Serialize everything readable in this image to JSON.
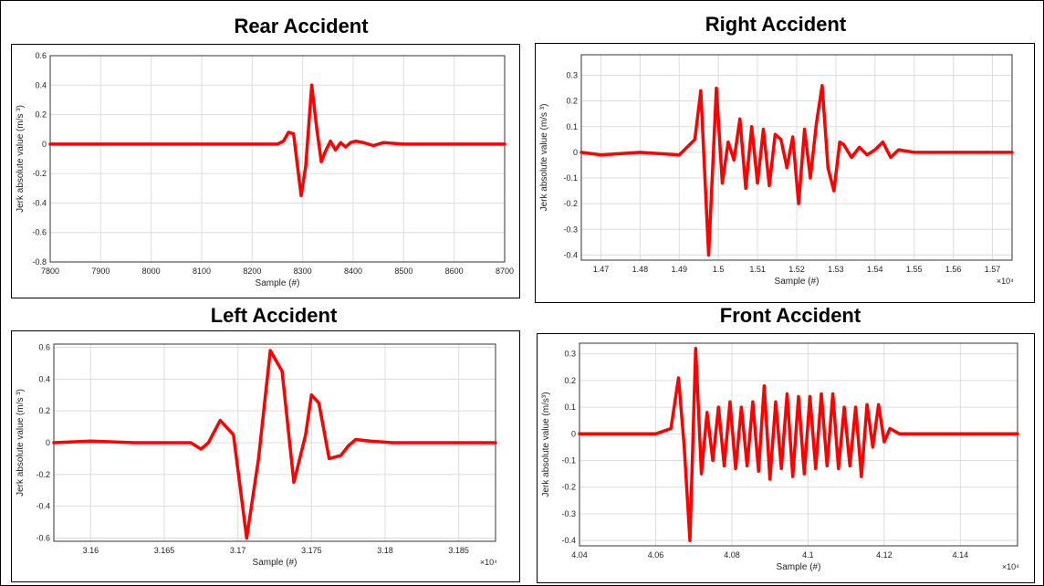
{
  "chart_data": [
    {
      "type": "line",
      "title": "Rear Accident",
      "xlabel": "Sample (#)",
      "ylabel": "Jerk absolute value (m/s ³)",
      "exponent": "",
      "xlim": [
        7800,
        8700
      ],
      "ylim": [
        -0.8,
        0.6
      ],
      "xticks": [
        7800,
        7900,
        8000,
        8100,
        8200,
        8300,
        8400,
        8500,
        8600,
        8700
      ],
      "xtick_labels": [
        "7800",
        "7900",
        "8000",
        "8100",
        "8200",
        "8300",
        "8400",
        "8500",
        "8600",
        "8700"
      ],
      "yticks": [
        -0.8,
        -0.6,
        -0.4,
        -0.2,
        0,
        0.2,
        0.4,
        0.6
      ],
      "ytick_labels": [
        "-0.8",
        "-0.6",
        "-0.4",
        "-0.2",
        "0",
        "0.2",
        "0.4",
        "0.6"
      ],
      "grid": true,
      "color": "#ff0000",
      "series": [
        {
          "x": [
            7800,
            8250,
            8262,
            8272,
            8282,
            8288,
            8297,
            8306,
            8318,
            8328,
            8337,
            8345,
            8355,
            8365,
            8375,
            8385,
            8395,
            8405,
            8420,
            8440,
            8460,
            8500,
            8550,
            8600,
            8700
          ],
          "y": [
            0,
            0,
            0.02,
            0.08,
            0.07,
            -0.1,
            -0.35,
            -0.15,
            0.4,
            0.1,
            -0.12,
            -0.05,
            0.02,
            -0.04,
            0.01,
            -0.02,
            0.01,
            0.02,
            0.01,
            -0.01,
            0.01,
            0,
            0,
            0,
            0
          ]
        }
      ]
    },
    {
      "type": "line",
      "title": "Right Accident",
      "xlabel": "Sample (#)",
      "ylabel": "Jerk absolute value (m/s ³)",
      "exponent": "×10⁴",
      "xlim": [
        1.465,
        1.575
      ],
      "ylim": [
        -0.42,
        0.38
      ],
      "xticks": [
        1.47,
        1.48,
        1.49,
        1.5,
        1.51,
        1.52,
        1.53,
        1.54,
        1.55,
        1.56,
        1.57
      ],
      "xtick_labels": [
        "1.47",
        "1.48",
        "1.49",
        "1.5",
        "1.51",
        "1.52",
        "1.53",
        "1.54",
        "1.55",
        "1.56",
        "1.57"
      ],
      "yticks": [
        -0.4,
        -0.3,
        -0.2,
        -0.1,
        0,
        0.1,
        0.2,
        0.3
      ],
      "ytick_labels": [
        "-0.4",
        "-0.3",
        "-0.2",
        "-0.1",
        "0",
        "0.1",
        "0.2",
        "0.3"
      ],
      "grid": true,
      "color": "#ff0000",
      "series": [
        {
          "x": [
            1.465,
            1.47,
            1.48,
            1.49,
            1.492,
            1.494,
            1.4955,
            1.4975,
            1.4995,
            1.501,
            1.5025,
            1.504,
            1.5055,
            1.507,
            1.5085,
            1.51,
            1.5115,
            1.513,
            1.5145,
            1.516,
            1.5175,
            1.519,
            1.5205,
            1.522,
            1.5235,
            1.525,
            1.5265,
            1.528,
            1.5295,
            1.531,
            1.532,
            1.534,
            1.536,
            1.538,
            1.54,
            1.542,
            1.544,
            1.546,
            1.55,
            1.56,
            1.575
          ],
          "y": [
            0,
            -0.01,
            0,
            -0.01,
            0.02,
            0.05,
            0.24,
            -0.4,
            0.25,
            -0.12,
            0.04,
            -0.03,
            0.13,
            -0.14,
            0.1,
            -0.12,
            0.09,
            -0.13,
            0.07,
            0.05,
            -0.06,
            0.06,
            -0.2,
            0.09,
            -0.1,
            0.11,
            0.26,
            -0.06,
            -0.15,
            0.04,
            0.03,
            -0.02,
            0.02,
            -0.01,
            0.01,
            0.04,
            -0.02,
            0.01,
            0,
            0,
            0
          ]
        }
      ]
    },
    {
      "type": "line",
      "title": "Left Accident",
      "xlabel": "Sample (#)",
      "ylabel": "Jerk absolute value (m/s ³)",
      "exponent": "×10⁴",
      "xlim": [
        3.1575,
        3.1875
      ],
      "ylim": [
        -0.62,
        0.62
      ],
      "xticks": [
        3.16,
        3.165,
        3.17,
        3.175,
        3.18,
        3.185
      ],
      "xtick_labels": [
        "3.16",
        "3.165",
        "3.17",
        "3.175",
        "3.18",
        "3.185"
      ],
      "yticks": [
        -0.6,
        -0.4,
        -0.2,
        0,
        0.2,
        0.4,
        0.6
      ],
      "ytick_labels": [
        "-0.6",
        "-0.4",
        "-0.2",
        "0",
        "0.2",
        "0.4",
        "0.6"
      ],
      "grid": true,
      "color": "#ff0000",
      "series": [
        {
          "x": [
            3.1575,
            3.16,
            3.163,
            3.166,
            3.1668,
            3.1675,
            3.168,
            3.1688,
            3.1697,
            3.1706,
            3.1714,
            3.1722,
            3.173,
            3.1738,
            3.1746,
            3.175,
            3.1755,
            3.1762,
            3.177,
            3.1775,
            3.178,
            3.179,
            3.1805,
            3.182,
            3.1875
          ],
          "y": [
            0,
            0.01,
            0,
            0,
            0,
            -0.04,
            0,
            0.14,
            0.05,
            -0.6,
            -0.1,
            0.58,
            0.45,
            -0.25,
            0.05,
            0.3,
            0.25,
            -0.1,
            -0.08,
            -0.02,
            0.02,
            0.01,
            0,
            0,
            0
          ]
        }
      ]
    },
    {
      "type": "line",
      "title": "Front Accident",
      "xlabel": "Sample (#)",
      "ylabel": "Jerk absolute value (m/s³)",
      "exponent": "×10⁴",
      "xlim": [
        4.04,
        4.155
      ],
      "ylim": [
        -0.42,
        0.34
      ],
      "xticks": [
        4.04,
        4.06,
        4.08,
        4.1,
        4.12,
        4.14
      ],
      "xtick_labels": [
        "4.04",
        "4.06",
        "4.08",
        "4.1",
        "4.12",
        "4.14"
      ],
      "yticks": [
        -0.4,
        -0.3,
        -0.2,
        -0.1,
        0,
        0.1,
        0.2,
        0.3
      ],
      "ytick_labels": [
        "-0.4",
        "-0.3",
        "-0.2",
        "-0.1",
        "0",
        "0.1",
        "0.2",
        "0.3"
      ],
      "grid": true,
      "color": "#ff0000",
      "series": [
        {
          "x": [
            4.04,
            4.05,
            4.06,
            4.064,
            4.066,
            4.0675,
            4.069,
            4.0705,
            4.072,
            4.0735,
            4.075,
            4.0765,
            4.078,
            4.0795,
            4.081,
            4.0825,
            4.084,
            4.0855,
            4.087,
            4.0885,
            4.09,
            4.0915,
            4.093,
            4.0945,
            4.096,
            4.0975,
            4.099,
            4.1005,
            4.102,
            4.1035,
            4.105,
            4.1065,
            4.108,
            4.1095,
            4.111,
            4.1125,
            4.114,
            4.1155,
            4.117,
            4.1185,
            4.12,
            4.1215,
            4.124,
            4.13,
            4.155
          ],
          "y": [
            0,
            0,
            0,
            0.02,
            0.21,
            -0.05,
            -0.4,
            0.32,
            -0.15,
            0.08,
            -0.1,
            0.1,
            -0.12,
            0.12,
            -0.13,
            0.1,
            -0.12,
            0.12,
            -0.14,
            0.18,
            -0.17,
            0.12,
            -0.13,
            0.15,
            -0.16,
            0.14,
            -0.15,
            0.14,
            -0.13,
            0.15,
            -0.12,
            0.15,
            -0.13,
            0.1,
            -0.12,
            0.1,
            -0.16,
            0.11,
            -0.05,
            0.11,
            -0.03,
            0.02,
            0,
            0,
            0
          ]
        }
      ]
    }
  ]
}
